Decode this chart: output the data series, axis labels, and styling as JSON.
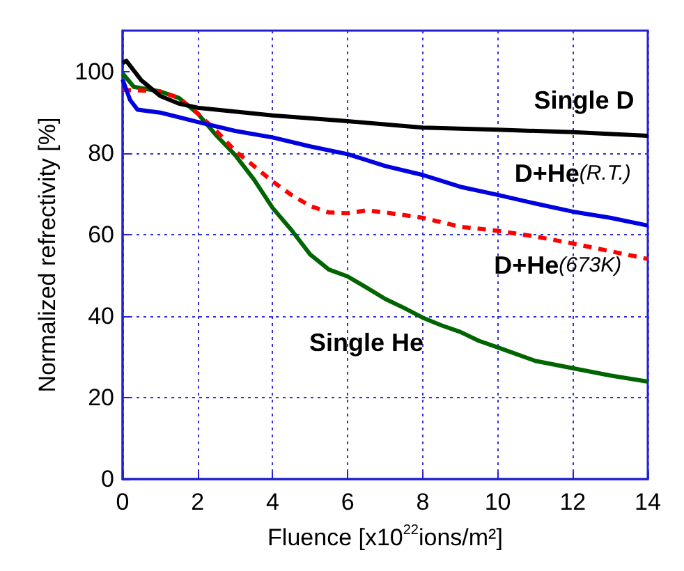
{
  "chart_data": {
    "type": "line",
    "xlabel": "Fluence [x10$^{22}$ions/m²]",
    "ylabel": "Normalized refrectivity [%]",
    "xlim": [
      0,
      14
    ],
    "xticks": [
      0,
      2,
      4,
      6,
      8,
      10,
      12,
      14
    ],
    "ylim": [
      0,
      110
    ],
    "yticks": [
      0,
      20,
      40,
      60,
      80,
      100
    ],
    "grid": true,
    "legend": false,
    "marker": "none",
    "series": [
      {
        "name": "Single D",
        "color": "#000000",
        "line_style": "solid",
        "x": [
          0,
          0.1,
          0.5,
          1,
          1.5,
          2,
          4,
          6,
          8,
          10,
          12,
          14
        ],
        "values": [
          102,
          102.6,
          97.8,
          94,
          92.1,
          91.1,
          89.2,
          87.8,
          86.2,
          85.7,
          85.1,
          84.2
        ]
      },
      {
        "name": "D+He(R.T.)",
        "color": "#0000e0",
        "line_style": "solid",
        "x": [
          0,
          0.2,
          0.4,
          1,
          2,
          3,
          4,
          5,
          6,
          7,
          8,
          9,
          10,
          11,
          12,
          13,
          14
        ],
        "values": [
          98,
          93,
          90.6,
          89.9,
          87.6,
          85.4,
          83.8,
          81.6,
          79.7,
          76.8,
          74.6,
          71.7,
          69.7,
          67.6,
          65.6,
          64.1,
          62.2
        ]
      },
      {
        "name": "D+He(673K)",
        "color": "#ff0000",
        "line_style": "dashed",
        "x": [
          0,
          1,
          1.5,
          2,
          2.5,
          3,
          3.5,
          4,
          4.5,
          5,
          5.5,
          6,
          6.5,
          7,
          8,
          9,
          10,
          11,
          12,
          13,
          14
        ],
        "values": [
          95.5,
          95.1,
          93.5,
          89.7,
          85.4,
          80.5,
          76.8,
          73,
          69.7,
          67,
          65.4,
          65.2,
          65.9,
          65.4,
          64.1,
          61.9,
          60.9,
          59.5,
          57.8,
          55.9,
          54
        ]
      },
      {
        "name": "Single He",
        "color": "#006400",
        "line_style": "solid",
        "x": [
          0,
          0.3,
          1,
          1.5,
          2,
          2.5,
          3,
          3.5,
          4,
          4.5,
          5,
          5.5,
          6,
          6.5,
          7,
          7.5,
          8,
          8.5,
          9,
          9.5,
          10,
          11,
          12,
          13,
          14
        ],
        "values": [
          99.5,
          96.2,
          95.1,
          93.5,
          89.7,
          84.3,
          79.5,
          73.5,
          66.5,
          61.1,
          55.1,
          51.4,
          49.7,
          47,
          44.2,
          42,
          39.6,
          37.7,
          36.1,
          33.9,
          32.3,
          29,
          27.2,
          25.4,
          23.9
        ]
      }
    ]
  }
}
